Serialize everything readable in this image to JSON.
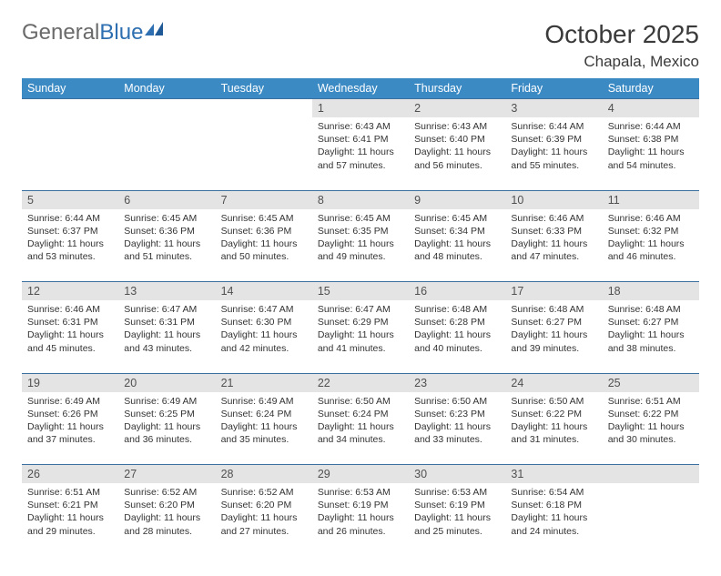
{
  "brand": {
    "part1": "General",
    "part2": "Blue"
  },
  "title": "October 2025",
  "location": "Chapala, Mexico",
  "day_headers": [
    "Sunday",
    "Monday",
    "Tuesday",
    "Wednesday",
    "Thursday",
    "Friday",
    "Saturday"
  ],
  "colors": {
    "header_bg": "#3b8ac4",
    "header_text": "#ffffff",
    "daynum_bg": "#e4e4e4",
    "rule": "#3b6fa0",
    "text": "#333333",
    "title_text": "#3a3a3a",
    "logo_gray": "#6a6a6a",
    "logo_blue": "#2d6fb0"
  },
  "typography": {
    "title_fontsize": 28,
    "location_fontsize": 17,
    "header_fontsize": 12.5,
    "daynum_fontsize": 12.5,
    "body_fontsize": 10.5
  },
  "weeks": [
    [
      null,
      null,
      null,
      {
        "n": "1",
        "sr": "6:43 AM",
        "ss": "6:41 PM",
        "dl": "11 hours and 57 minutes."
      },
      {
        "n": "2",
        "sr": "6:43 AM",
        "ss": "6:40 PM",
        "dl": "11 hours and 56 minutes."
      },
      {
        "n": "3",
        "sr": "6:44 AM",
        "ss": "6:39 PM",
        "dl": "11 hours and 55 minutes."
      },
      {
        "n": "4",
        "sr": "6:44 AM",
        "ss": "6:38 PM",
        "dl": "11 hours and 54 minutes."
      }
    ],
    [
      {
        "n": "5",
        "sr": "6:44 AM",
        "ss": "6:37 PM",
        "dl": "11 hours and 53 minutes."
      },
      {
        "n": "6",
        "sr": "6:45 AM",
        "ss": "6:36 PM",
        "dl": "11 hours and 51 minutes."
      },
      {
        "n": "7",
        "sr": "6:45 AM",
        "ss": "6:36 PM",
        "dl": "11 hours and 50 minutes."
      },
      {
        "n": "8",
        "sr": "6:45 AM",
        "ss": "6:35 PM",
        "dl": "11 hours and 49 minutes."
      },
      {
        "n": "9",
        "sr": "6:45 AM",
        "ss": "6:34 PM",
        "dl": "11 hours and 48 minutes."
      },
      {
        "n": "10",
        "sr": "6:46 AM",
        "ss": "6:33 PM",
        "dl": "11 hours and 47 minutes."
      },
      {
        "n": "11",
        "sr": "6:46 AM",
        "ss": "6:32 PM",
        "dl": "11 hours and 46 minutes."
      }
    ],
    [
      {
        "n": "12",
        "sr": "6:46 AM",
        "ss": "6:31 PM",
        "dl": "11 hours and 45 minutes."
      },
      {
        "n": "13",
        "sr": "6:47 AM",
        "ss": "6:31 PM",
        "dl": "11 hours and 43 minutes."
      },
      {
        "n": "14",
        "sr": "6:47 AM",
        "ss": "6:30 PM",
        "dl": "11 hours and 42 minutes."
      },
      {
        "n": "15",
        "sr": "6:47 AM",
        "ss": "6:29 PM",
        "dl": "11 hours and 41 minutes."
      },
      {
        "n": "16",
        "sr": "6:48 AM",
        "ss": "6:28 PM",
        "dl": "11 hours and 40 minutes."
      },
      {
        "n": "17",
        "sr": "6:48 AM",
        "ss": "6:27 PM",
        "dl": "11 hours and 39 minutes."
      },
      {
        "n": "18",
        "sr": "6:48 AM",
        "ss": "6:27 PM",
        "dl": "11 hours and 38 minutes."
      }
    ],
    [
      {
        "n": "19",
        "sr": "6:49 AM",
        "ss": "6:26 PM",
        "dl": "11 hours and 37 minutes."
      },
      {
        "n": "20",
        "sr": "6:49 AM",
        "ss": "6:25 PM",
        "dl": "11 hours and 36 minutes."
      },
      {
        "n": "21",
        "sr": "6:49 AM",
        "ss": "6:24 PM",
        "dl": "11 hours and 35 minutes."
      },
      {
        "n": "22",
        "sr": "6:50 AM",
        "ss": "6:24 PM",
        "dl": "11 hours and 34 minutes."
      },
      {
        "n": "23",
        "sr": "6:50 AM",
        "ss": "6:23 PM",
        "dl": "11 hours and 33 minutes."
      },
      {
        "n": "24",
        "sr": "6:50 AM",
        "ss": "6:22 PM",
        "dl": "11 hours and 31 minutes."
      },
      {
        "n": "25",
        "sr": "6:51 AM",
        "ss": "6:22 PM",
        "dl": "11 hours and 30 minutes."
      }
    ],
    [
      {
        "n": "26",
        "sr": "6:51 AM",
        "ss": "6:21 PM",
        "dl": "11 hours and 29 minutes."
      },
      {
        "n": "27",
        "sr": "6:52 AM",
        "ss": "6:20 PM",
        "dl": "11 hours and 28 minutes."
      },
      {
        "n": "28",
        "sr": "6:52 AM",
        "ss": "6:20 PM",
        "dl": "11 hours and 27 minutes."
      },
      {
        "n": "29",
        "sr": "6:53 AM",
        "ss": "6:19 PM",
        "dl": "11 hours and 26 minutes."
      },
      {
        "n": "30",
        "sr": "6:53 AM",
        "ss": "6:19 PM",
        "dl": "11 hours and 25 minutes."
      },
      {
        "n": "31",
        "sr": "6:54 AM",
        "ss": "6:18 PM",
        "dl": "11 hours and 24 minutes."
      },
      null
    ]
  ],
  "labels": {
    "sunrise": "Sunrise:",
    "sunset": "Sunset:",
    "daylight": "Daylight:"
  }
}
